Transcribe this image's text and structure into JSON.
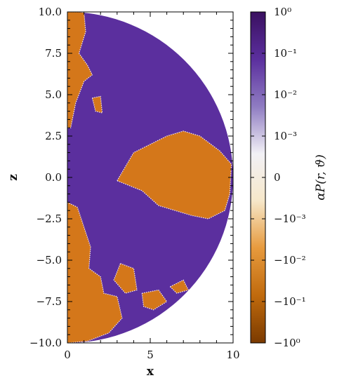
{
  "chart_data": {
    "type": "heatmap",
    "title": "",
    "xlabel": "x",
    "ylabel": "z",
    "xlim": [
      0,
      10
    ],
    "ylim": [
      -10,
      10
    ],
    "x_ticks": [
      {
        "value": 0,
        "label": "0"
      },
      {
        "value": 5,
        "label": "5"
      },
      {
        "value": 10,
        "label": "10"
      }
    ],
    "y_ticks": [
      {
        "value": 10.0,
        "label": "10.0"
      },
      {
        "value": 7.5,
        "label": "7.5"
      },
      {
        "value": 5.0,
        "label": "5.0"
      },
      {
        "value": 2.5,
        "label": "2.5"
      },
      {
        "value": 0.0,
        "label": "0.0"
      },
      {
        "value": -2.5,
        "label": "−2.5"
      },
      {
        "value": -5.0,
        "label": "−5.0"
      },
      {
        "value": -7.5,
        "label": "−7.5"
      },
      {
        "value": -10.0,
        "label": "−10.0"
      }
    ],
    "domain_shape": "half-disk of radius 10",
    "positive_color": "#5b2f9e",
    "negative_color": "#d4771a",
    "colorbar": {
      "label": "αP(r, ϑ)",
      "scale": "symlog",
      "range": [
        -1,
        1
      ],
      "ticks": [
        {
          "value": 1,
          "label": "10⁰"
        },
        {
          "value": 0.1,
          "label": "10⁻¹"
        },
        {
          "value": 0.01,
          "label": "10⁻²"
        },
        {
          "value": 0.001,
          "label": "10⁻³"
        },
        {
          "value": 0,
          "label": "0"
        },
        {
          "value": -0.001,
          "label": "−10⁻³"
        },
        {
          "value": -0.01,
          "label": "−10⁻²"
        },
        {
          "value": -0.1,
          "label": "−10⁻¹"
        },
        {
          "value": -1,
          "label": "−10⁰"
        }
      ],
      "colors": [
        "#3a1060",
        "#5b2f9e",
        "#8f7cc2",
        "#f2f1f6",
        "#f6e7c9",
        "#e79a3d",
        "#c06a0d",
        "#7a3a00"
      ]
    },
    "regions": [
      {
        "name": "equatorial-negative-lobe",
        "sign": "negative",
        "points": [
          [
            3.0,
            -0.2
          ],
          [
            4.0,
            1.5
          ],
          [
            5.0,
            2.0
          ],
          [
            6.0,
            2.5
          ],
          [
            7.0,
            2.8
          ],
          [
            8.0,
            2.5
          ],
          [
            9.2,
            1.6
          ],
          [
            9.9,
            0.8
          ],
          [
            9.8,
            -1.0
          ],
          [
            9.5,
            -2.0
          ],
          [
            8.5,
            -2.5
          ],
          [
            7.5,
            -2.3
          ],
          [
            6.5,
            -2.0
          ],
          [
            5.5,
            -1.7
          ],
          [
            4.5,
            -0.8
          ]
        ]
      },
      {
        "name": "polar-negative-strip-north",
        "sign": "negative",
        "points": [
          [
            0,
            10
          ],
          [
            1.0,
            10
          ],
          [
            1.1,
            8.8
          ],
          [
            0.7,
            7.5
          ],
          [
            1.2,
            6.8
          ],
          [
            1.5,
            6.2
          ],
          [
            1.0,
            5.8
          ],
          [
            0.5,
            4.5
          ],
          [
            0.2,
            3.0
          ],
          [
            0,
            3.0
          ]
        ]
      },
      {
        "name": "north-small-patch",
        "sign": "negative",
        "points": [
          [
            1.5,
            4.8
          ],
          [
            2.0,
            4.9
          ],
          [
            2.1,
            3.9
          ],
          [
            1.7,
            4.0
          ]
        ]
      },
      {
        "name": "polar-negative-strip-south",
        "sign": "negative",
        "points": [
          [
            0,
            -1.5
          ],
          [
            0.6,
            -1.8
          ],
          [
            1.0,
            -3.0
          ],
          [
            1.4,
            -4.2
          ],
          [
            1.3,
            -5.5
          ],
          [
            2.0,
            -6.0
          ],
          [
            2.2,
            -7.0
          ],
          [
            3.0,
            -7.2
          ],
          [
            3.3,
            -8.5
          ],
          [
            2.5,
            -9.4
          ],
          [
            1.2,
            -9.9
          ],
          [
            0,
            -10
          ]
        ]
      },
      {
        "name": "south-patch-a",
        "sign": "negative",
        "points": [
          [
            3.2,
            -5.2
          ],
          [
            4.0,
            -5.5
          ],
          [
            4.2,
            -6.8
          ],
          [
            3.5,
            -7.0
          ],
          [
            2.8,
            -6.2
          ]
        ]
      },
      {
        "name": "south-patch-b",
        "sign": "negative",
        "points": [
          [
            4.5,
            -7.0
          ],
          [
            5.5,
            -6.8
          ],
          [
            6.0,
            -7.5
          ],
          [
            5.2,
            -8.0
          ],
          [
            4.6,
            -7.8
          ]
        ]
      },
      {
        "name": "south-patch-c",
        "sign": "negative",
        "points": [
          [
            6.2,
            -6.6
          ],
          [
            7.0,
            -6.2
          ],
          [
            7.3,
            -6.8
          ],
          [
            6.6,
            -7.0
          ]
        ]
      }
    ]
  }
}
